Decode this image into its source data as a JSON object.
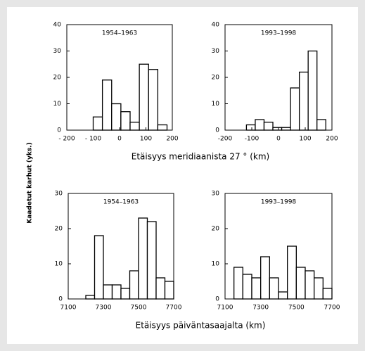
{
  "chart_data": [
    {
      "type": "histogram",
      "title": "1954–1963",
      "ylabel": "Kaadetut karhut (yks.)",
      "xlabel": "Etäisyys meridiaanista 27 ° (km)",
      "bins": [
        -100,
        -65,
        -30,
        5,
        40,
        75,
        110,
        145,
        180
      ],
      "values": [
        5,
        19,
        10,
        7,
        3,
        25,
        23,
        2
      ],
      "xlim": [
        -200,
        200
      ],
      "ylim": [
        0,
        40
      ],
      "xticks": [
        {
          "value": -200,
          "label": "- 200"
        },
        {
          "value": -100,
          "label": "- 100"
        },
        0,
        100,
        200
      ],
      "yticks": [
        0,
        10,
        20,
        30,
        40
      ]
    },
    {
      "type": "histogram",
      "title": "1993–1998",
      "bins": [
        -120,
        -87,
        -54,
        -21,
        12,
        45,
        78,
        111,
        144,
        177
      ],
      "values": [
        2,
        4,
        3,
        1,
        1,
        16,
        22,
        30,
        4
      ],
      "xlim": [
        -200,
        200
      ],
      "ylim": [
        0,
        40
      ],
      "xticks": [
        -200,
        -100,
        0,
        100,
        200
      ],
      "yticks": [
        0,
        10,
        20,
        30,
        40
      ]
    },
    {
      "type": "histogram",
      "title": "1954–1963",
      "xlabel": "Etäisyys päiväntasaajalta (km)",
      "bins": [
        7200,
        7250,
        7300,
        7350,
        7400,
        7450,
        7500,
        7550,
        7600,
        7650,
        7700
      ],
      "values": [
        1,
        18,
        4,
        4,
        3,
        8,
        23,
        22,
        6,
        5
      ],
      "xlim": [
        7100,
        7700
      ],
      "ylim": [
        0,
        30
      ],
      "xticks": [
        7100,
        7300,
        7500,
        7700
      ],
      "yticks": [
        0,
        10,
        20,
        30
      ]
    },
    {
      "type": "histogram",
      "title": "1993–1998",
      "bins": [
        7150,
        7200,
        7250,
        7300,
        7350,
        7400,
        7450,
        7500,
        7550,
        7600,
        7650,
        7700
      ],
      "values": [
        9,
        7,
        6,
        12,
        6,
        2,
        15,
        9,
        8,
        6,
        3
      ],
      "xlim": [
        7100,
        7700
      ],
      "ylim": [
        0,
        30
      ],
      "xticks": [
        7100,
        7300,
        7500,
        7700
      ],
      "yticks": [
        0,
        10,
        20,
        30
      ]
    }
  ]
}
